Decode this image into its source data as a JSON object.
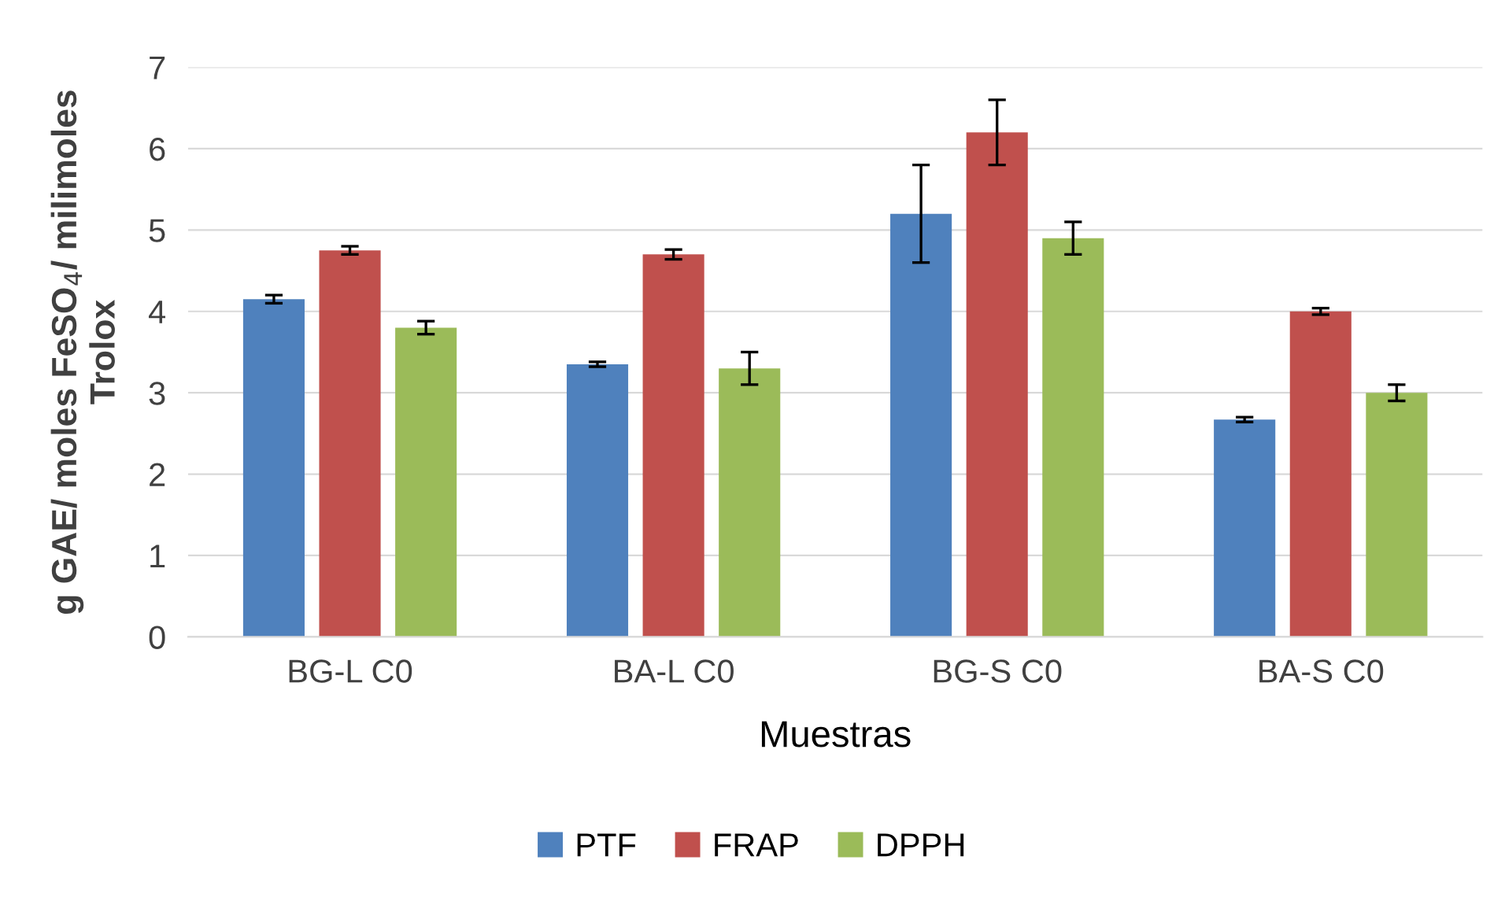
{
  "chart_data": {
    "type": "bar",
    "xlabel": "Muestras",
    "ylabel": "g GAE/ moles FeSO$_{4}$/ milimoles\nTrolox",
    "categories": [
      "BG-L C0",
      "BA-L C0",
      "BG-S C0",
      "BA-S C0"
    ],
    "series": [
      {
        "name": "PTF",
        "color": "#4f81bd",
        "values": [
          4.15,
          3.35,
          5.2,
          2.67
        ],
        "errors": [
          0.05,
          0.03,
          0.6,
          0.03
        ]
      },
      {
        "name": "FRAP",
        "color": "#c0504d",
        "values": [
          4.75,
          4.7,
          6.2,
          4.0
        ],
        "errors": [
          0.05,
          0.06,
          0.4,
          0.04
        ]
      },
      {
        "name": "DPPH",
        "color": "#9bbb59",
        "values": [
          3.8,
          3.3,
          4.9,
          3.0
        ],
        "errors": [
          0.08,
          0.2,
          0.2,
          0.1
        ]
      }
    ],
    "ylim": [
      0,
      7
    ],
    "yticks": [
      0,
      1,
      2,
      3,
      4,
      5,
      6,
      7
    ],
    "grid": "y",
    "legend": "bottom"
  }
}
